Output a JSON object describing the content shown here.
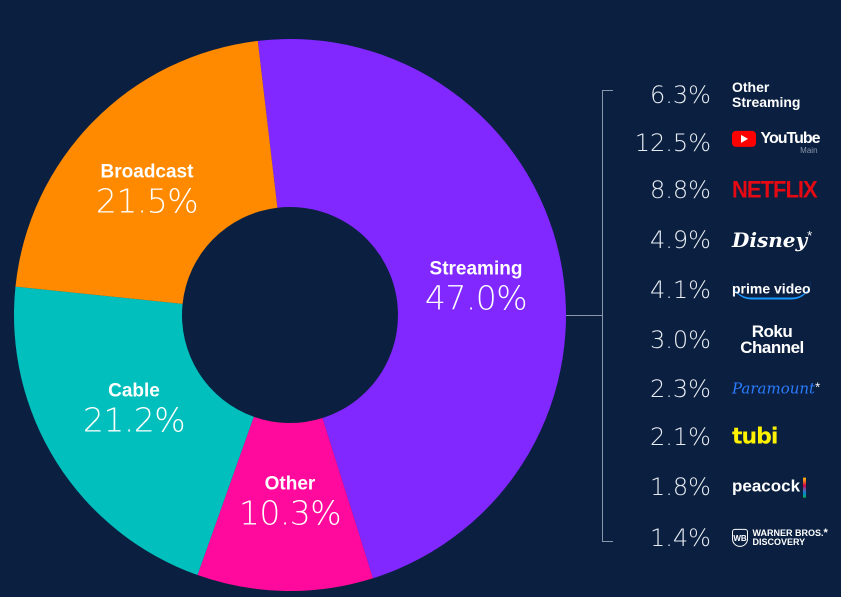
{
  "chart_data": {
    "type": "pie",
    "donut": true,
    "title": "",
    "slices": [
      {
        "label": "Streaming",
        "value": 47.0,
        "display": "47.0%",
        "color": "#8127ff"
      },
      {
        "label": "Other",
        "value": 10.3,
        "display": "10.3%",
        "color": "#ff0a9c"
      },
      {
        "label": "Cable",
        "value": 21.2,
        "display": "21.2%",
        "color": "#00bfbd"
      },
      {
        "label": "Broadcast",
        "value": 21.5,
        "display": "21.5%",
        "color": "#ff8a00"
      }
    ],
    "streaming_breakdown": [
      {
        "label": "Other Streaming",
        "display": "6.3%",
        "value": 6.3
      },
      {
        "label": "YouTube",
        "sub": "Main",
        "display": "12.5%",
        "value": 12.5
      },
      {
        "label": "NETFLIX",
        "display": "8.8%",
        "value": 8.8
      },
      {
        "label": "Disney",
        "display": "4.9%",
        "value": 4.9,
        "asterisk": "*"
      },
      {
        "label": "prime video",
        "display": "4.1%",
        "value": 4.1
      },
      {
        "label": "Roku Channel",
        "display": "3.0%",
        "value": 3.0
      },
      {
        "label": "Paramount",
        "display": "2.3%",
        "value": 2.3,
        "asterisk": "*"
      },
      {
        "label": "tubi",
        "display": "2.1%",
        "value": 2.1
      },
      {
        "label": "peacock",
        "display": "1.8%",
        "value": 1.8
      },
      {
        "label": "WARNER BROS. DISCOVERY",
        "line1": "WARNER BROS.",
        "line2": "DISCOVERY",
        "display": "1.4%",
        "value": 1.4,
        "asterisk": "*"
      }
    ]
  },
  "other_streaming": {
    "line1": "Other",
    "line2": "Streaming"
  }
}
